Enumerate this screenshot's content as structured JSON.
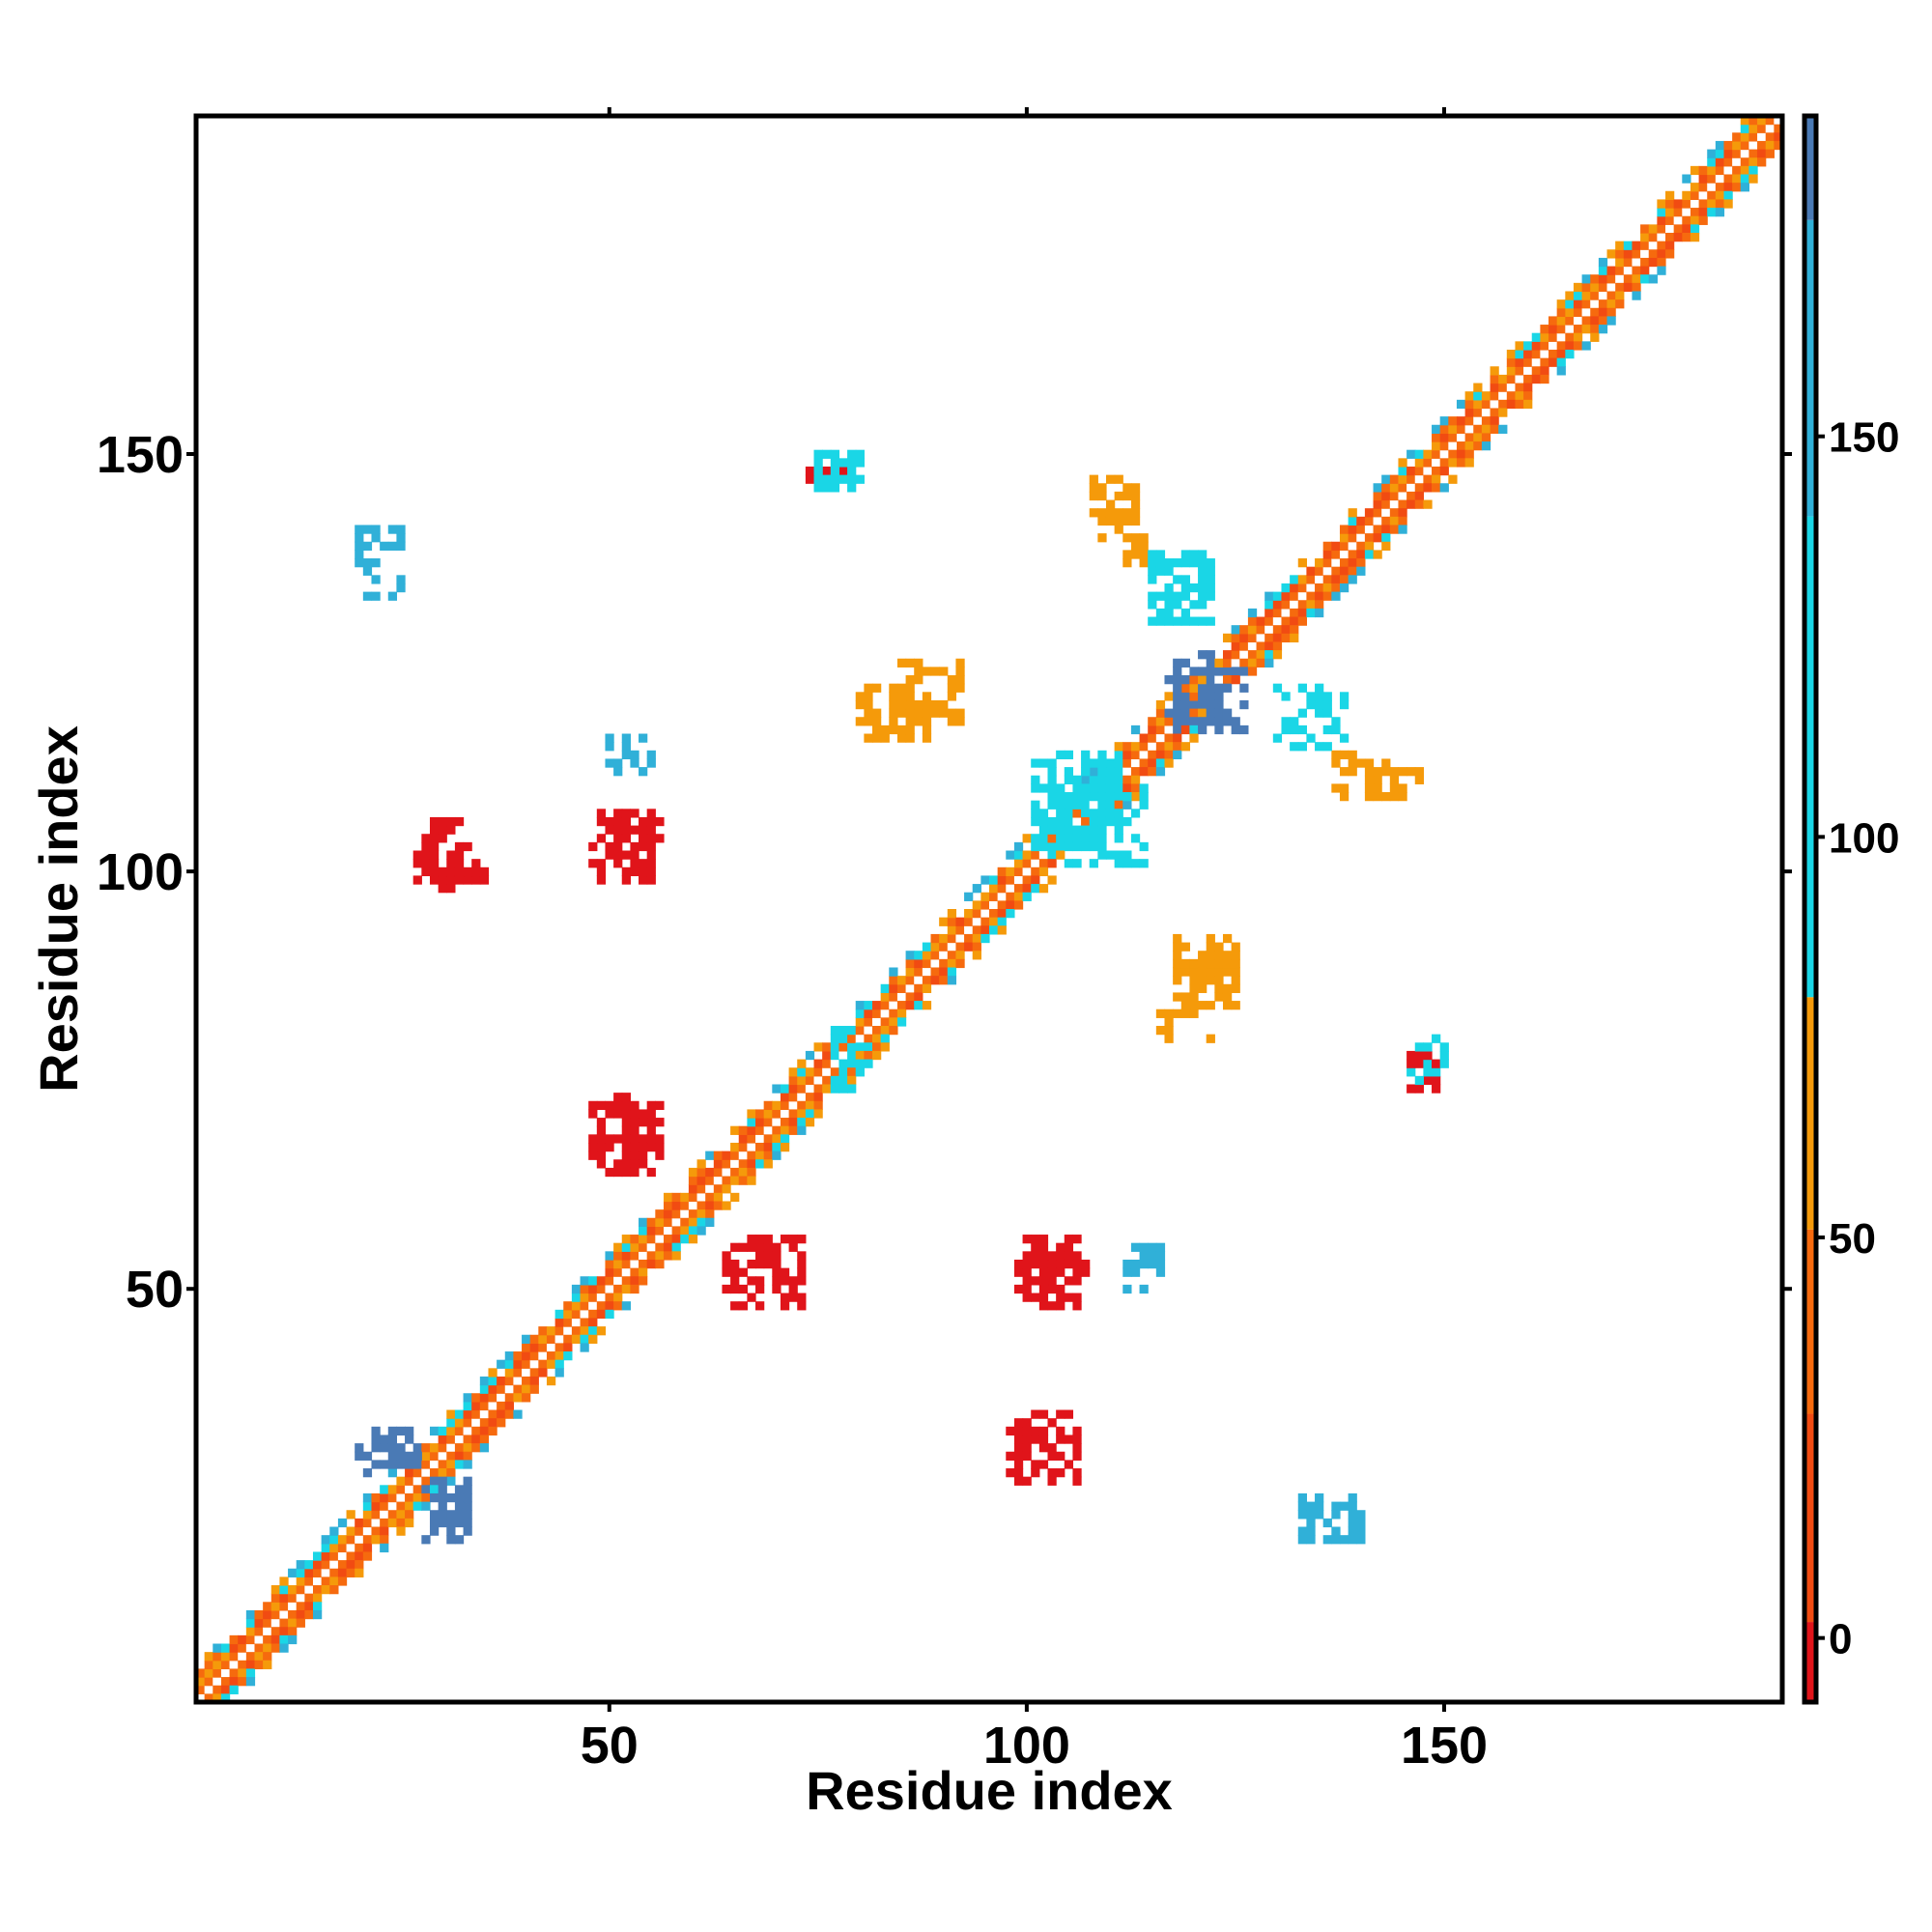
{
  "chart_data": {
    "type": "heatmap",
    "title": "",
    "xlabel": "Residue index",
    "ylabel": "Residue index",
    "xlim": [
      1,
      190
    ],
    "ylim": [
      1,
      190
    ],
    "x_ticks": [
      50,
      100,
      150
    ],
    "y_ticks": [
      50,
      100,
      150
    ],
    "grid": false,
    "colorbar": {
      "range": [
        -8,
        190
      ],
      "ticks": [
        0,
        50,
        100,
        150
      ],
      "bands": [
        {
          "from": -8,
          "to": 2,
          "color": "#e0141a"
        },
        {
          "from": 2,
          "to": 28,
          "color": "#f14b12"
        },
        {
          "from": 28,
          "to": 51,
          "color": "#f66a0e"
        },
        {
          "from": 51,
          "to": 80,
          "color": "#f59a0a"
        },
        {
          "from": 80,
          "to": 140,
          "color": "#1ad6e6"
        },
        {
          "from": 140,
          "to": 177,
          "color": "#30b0d8"
        },
        {
          "from": 177,
          "to": 190,
          "color": "#4a7ab5"
        }
      ]
    },
    "palette": {
      "red": "#e0141a",
      "red_orange": "#f14b12",
      "orange": "#f66a0e",
      "amber": "#f59a0a",
      "cyan": "#1ad6e6",
      "sky": "#30b0d8",
      "steel": "#4a7ab5"
    },
    "diagonal": {
      "from": 1,
      "to": 190
    },
    "contact_blocks": [
      {
        "x": [
          28,
          33
        ],
        "y": [
          98,
          106
        ],
        "color": "red"
      },
      {
        "x": [
          49,
          55
        ],
        "y": [
          99,
          107
        ],
        "color": "red"
      },
      {
        "x": [
          49,
          55
        ],
        "y": [
          64,
          72
        ],
        "color": "red"
      },
      {
        "x": [
          65,
          73
        ],
        "y": [
          48,
          56
        ],
        "color": "red"
      },
      {
        "x": [
          100,
          106
        ],
        "y": [
          48,
          56
        ],
        "color": "red"
      },
      {
        "x": [
          99,
          106
        ],
        "y": [
          27,
          35
        ],
        "color": "red"
      },
      {
        "x": [
          146,
          149
        ],
        "y": [
          74,
          78
        ],
        "color": "red"
      },
      {
        "x": [
          22,
          27
        ],
        "y": [
          29,
          33
        ],
        "color": "steel"
      },
      {
        "x": [
          28,
          33
        ],
        "y": [
          20,
          26
        ],
        "color": "steel"
      },
      {
        "x": [
          20,
          25
        ],
        "y": [
          139,
          141
        ],
        "color": "sky"
      },
      {
        "x": [
          75,
          80
        ],
        "y": [
          146,
          150
        ],
        "color": "cyan"
      },
      {
        "x": [
          108,
          113
        ],
        "y": [
          142,
          147
        ],
        "color": "amber"
      },
      {
        "x": [
          137,
          142
        ],
        "y": [
          109,
          114
        ],
        "color": "amber"
      },
      {
        "x": [
          118,
          126
        ],
        "y": [
          117,
          124
        ],
        "color": "steel"
      },
      {
        "x": [
          101,
          111
        ],
        "y": [
          103,
          114
        ],
        "color": "cyan"
      },
      {
        "x": [
          77,
          81
        ],
        "y": [
          74,
          79
        ],
        "color": "cyan"
      },
      {
        "x": [
          118,
          125
        ],
        "y": [
          84,
          92
        ],
        "color": "amber"
      },
      {
        "x": [
          80,
          88
        ],
        "y": [
          116,
          122
        ],
        "color": "amber"
      },
      {
        "x": [
          115,
          122
        ],
        "y": [
          130,
          138
        ],
        "color": "cyan"
      },
      {
        "x": [
          112,
          116
        ],
        "y": [
          50,
          55
        ],
        "color": "sky"
      },
      {
        "x": [
          133,
          140
        ],
        "y": [
          20,
          25
        ],
        "color": "sky"
      }
    ]
  }
}
